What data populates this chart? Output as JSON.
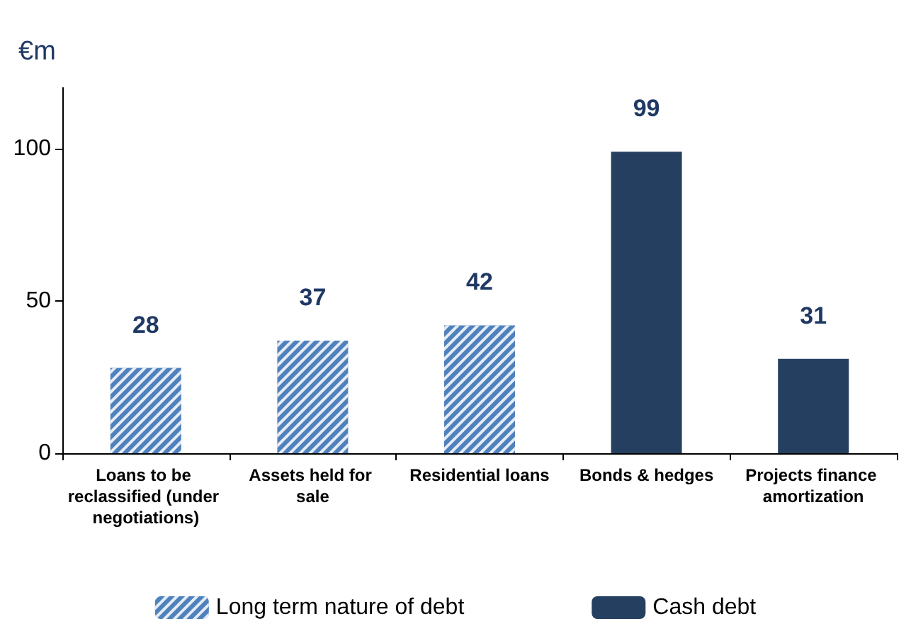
{
  "chart_data": {
    "type": "bar",
    "ylabel": "€m",
    "categories": [
      "Loans to be reclassified (under negotiations)",
      "Assets held for sale",
      "Residential loans",
      "Bonds & hedges",
      "Projects finance amortization"
    ],
    "series": [
      {
        "name": "Long term nature of debt",
        "color": "#4f81bd",
        "values": [
          28,
          37,
          42,
          null,
          null
        ]
      },
      {
        "name": "Cash debt",
        "color": "#243f60",
        "values": [
          null,
          null,
          null,
          99,
          31
        ]
      }
    ],
    "stacked": true,
    "ylim": [
      0,
      120
    ],
    "yticks": [
      0,
      50,
      100
    ],
    "data_labels": true,
    "grid": false,
    "legend": "bottom"
  }
}
